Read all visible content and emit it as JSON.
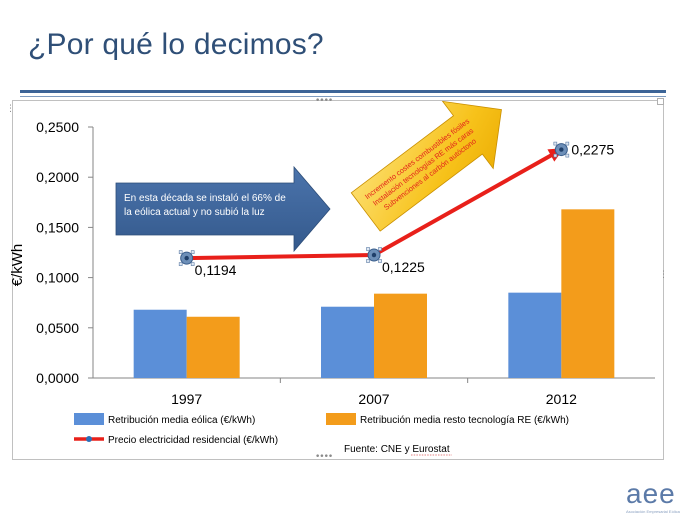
{
  "slide": {
    "title": "¿Por qué lo decimos?"
  },
  "chart_data": {
    "type": "bar",
    "ylabel": "€/kWh",
    "ylim": [
      0,
      0.25
    ],
    "y_ticks": [
      "0,0000",
      "0,0500",
      "0,1000",
      "0,1500",
      "0,2000",
      "0,2500"
    ],
    "categories": [
      "1997",
      "2007",
      "2012"
    ],
    "series": [
      {
        "name": "Retribución media eólica (€/kWh)",
        "type": "bar",
        "color": "#5b8fd8",
        "values": [
          0.068,
          0.071,
          0.085
        ]
      },
      {
        "name": "Retribución media resto tecnología RE (€/kWh)",
        "type": "bar",
        "color": "#f39c1b",
        "values": [
          0.061,
          0.084,
          0.168
        ]
      },
      {
        "name": "Precio electricidad residencial (€/kWh)",
        "type": "line",
        "color": "#e8201a",
        "values": [
          0.1194,
          0.1225,
          0.2275
        ],
        "data_labels": [
          "0,1194",
          "0,1225",
          "0,2275"
        ]
      }
    ],
    "grid": false,
    "legend_position": "bottom",
    "annotations": {
      "blue_arrow": "En esta década se instaló el 66%  de la eólica actual y no subió la luz",
      "yellow_arrow": [
        "Incremento costes combustibles fósiles",
        "Instalación tecnologías RE más caras",
        "Subvenciones al carbón autóctono"
      ],
      "source": "Fuente: CNE y Eurostat"
    }
  },
  "logo": {
    "text": "aee",
    "subtitle": "Asociación Empresarial Eólica"
  }
}
